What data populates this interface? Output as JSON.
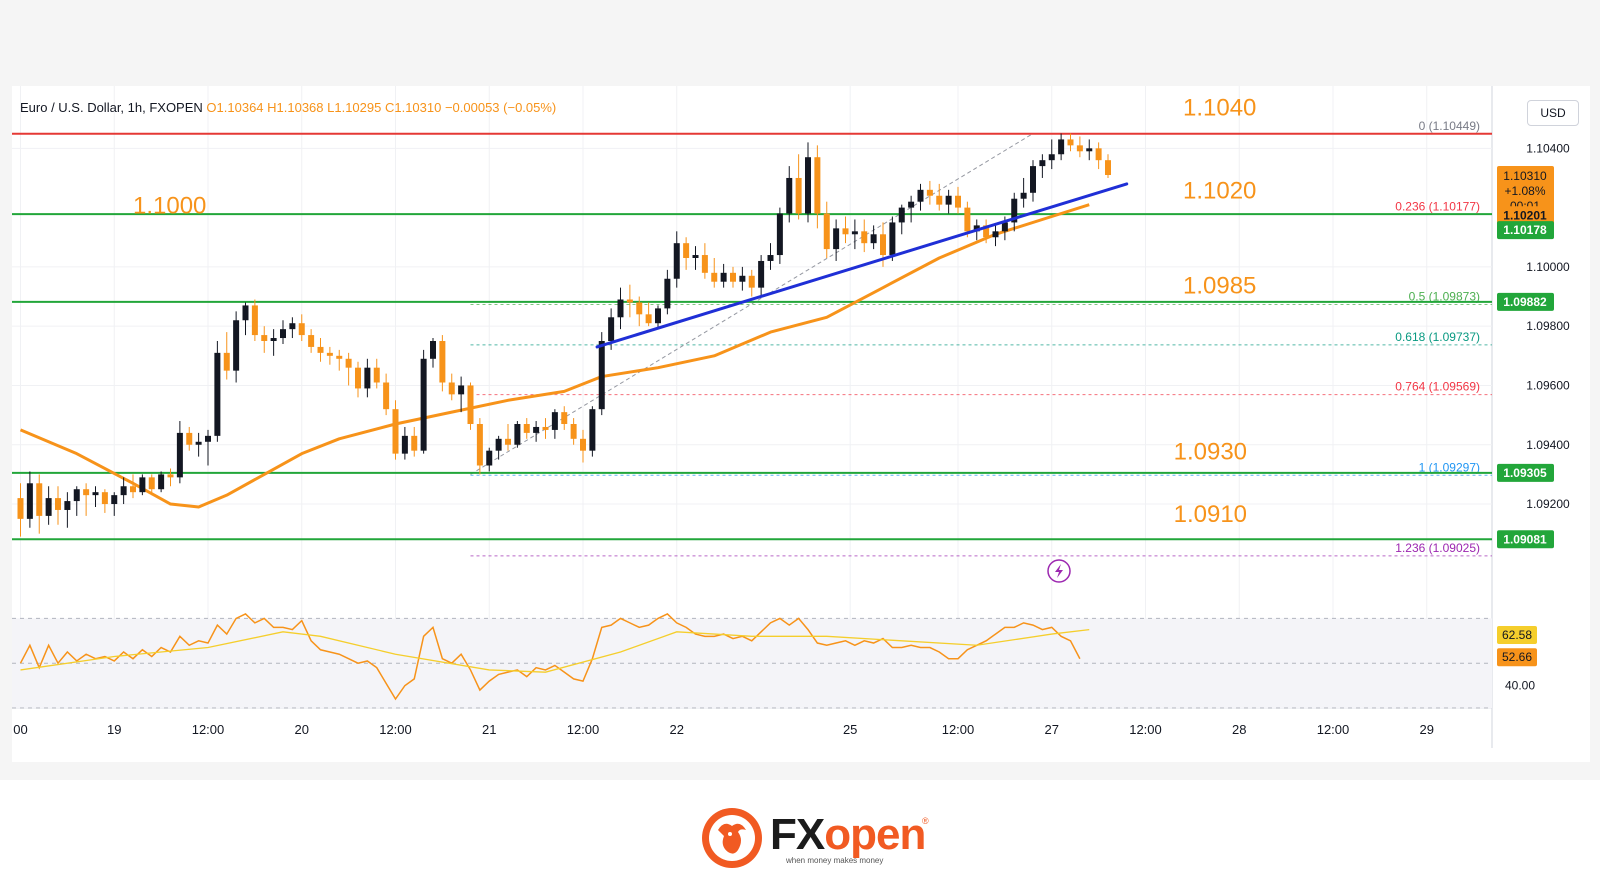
{
  "legend": {
    "symbol": "Euro / U.S. Dollar, 1h, FXOPEN",
    "ohlc": "O1.10364  H1.10368  L1.10295  C1.10310  −0.00053 (−0.05%)"
  },
  "currency_badge": "USD",
  "price_axis": {
    "ticks": [
      {
        "value": 1.104,
        "label": "1.10400"
      },
      {
        "value": 1.1,
        "label": "1.10000"
      },
      {
        "value": 1.098,
        "label": "1.09800"
      },
      {
        "value": 1.096,
        "label": "1.09600"
      },
      {
        "value": 1.094,
        "label": "1.09400"
      },
      {
        "value": 1.092,
        "label": "1.09200"
      }
    ],
    "tags": [
      {
        "value": 1.1031,
        "label": "1.10310",
        "color": "#f7931a"
      },
      {
        "value": 1.10201,
        "label": "1.10201",
        "color": "#f7931a"
      },
      {
        "value": 1.10178,
        "label": "1.10178",
        "color": "#22a63a"
      },
      {
        "value": 1.09882,
        "label": "1.09882",
        "color": "#22a63a"
      },
      {
        "value": 1.09305,
        "label": "1.09305",
        "color": "#22a63a"
      },
      {
        "value": 1.09081,
        "label": "1.09081",
        "color": "#22a63a"
      }
    ],
    "current_change": "+1.08%",
    "countdown": "00:01"
  },
  "time_axis": {
    "labels": [
      {
        "bar": 0,
        "label": "00"
      },
      {
        "bar": 10,
        "label": "19"
      },
      {
        "bar": 20,
        "label": "12:00"
      },
      {
        "bar": 30,
        "label": "20"
      },
      {
        "bar": 40,
        "label": "12:00"
      },
      {
        "bar": 50,
        "label": "21"
      },
      {
        "bar": 60,
        "label": "12:00"
      },
      {
        "bar": 70,
        "label": "22"
      },
      {
        "bar": 88.5,
        "label": "25"
      },
      {
        "bar": 100,
        "label": "12:00"
      },
      {
        "bar": 110,
        "label": "27"
      },
      {
        "bar": 120,
        "label": "12:00"
      },
      {
        "bar": 130,
        "label": "28"
      },
      {
        "bar": 140,
        "label": "12:00"
      },
      {
        "bar": 150,
        "label": "29"
      }
    ]
  },
  "chart_data": {
    "type": "candlestick",
    "instrument": "Euro / U.S. Dollar",
    "timeframe": "1h",
    "ylim": [
      1.0891,
      1.1059
    ],
    "candles": [
      [
        1.0922,
        1.0927,
        1.0909,
        1.0915
      ],
      [
        1.0915,
        1.0931,
        1.0912,
        1.0927
      ],
      [
        1.0927,
        1.093,
        1.091,
        1.0916
      ],
      [
        1.0916,
        1.0926,
        1.0913,
        1.0922
      ],
      [
        1.0922,
        1.0926,
        1.0913,
        1.0918
      ],
      [
        1.0918,
        1.0924,
        1.0912,
        1.0921
      ],
      [
        1.0921,
        1.0926,
        1.0916,
        1.0925
      ],
      [
        1.0925,
        1.0927,
        1.0916,
        1.0923
      ],
      [
        1.0923,
        1.0926,
        1.0919,
        1.0924
      ],
      [
        1.0924,
        1.0925,
        1.0917,
        1.092
      ],
      [
        1.092,
        1.0924,
        1.0916,
        1.0923
      ],
      [
        1.0923,
        1.0929,
        1.092,
        1.0926
      ],
      [
        1.0926,
        1.093,
        1.0922,
        1.0924
      ],
      [
        1.0924,
        1.093,
        1.0923,
        1.0929
      ],
      [
        1.0929,
        1.093,
        1.0923,
        1.0925
      ],
      [
        1.0925,
        1.0931,
        1.0924,
        1.093
      ],
      [
        1.093,
        1.0932,
        1.0926,
        1.0929
      ],
      [
        1.0929,
        1.0948,
        1.0927,
        1.0944
      ],
      [
        1.0944,
        1.0946,
        1.0938,
        1.094
      ],
      [
        1.094,
        1.0944,
        1.0936,
        1.0941
      ],
      [
        1.0941,
        1.0945,
        1.0933,
        1.0943
      ],
      [
        1.0943,
        1.0975,
        1.0941,
        1.0971
      ],
      [
        1.0971,
        1.0978,
        1.0962,
        1.0965
      ],
      [
        1.0965,
        1.0985,
        1.0961,
        1.0982
      ],
      [
        1.0982,
        1.0988,
        1.0977,
        1.0987
      ],
      [
        1.0987,
        1.0989,
        1.0975,
        1.0977
      ],
      [
        1.0977,
        1.098,
        1.0971,
        1.0975
      ],
      [
        1.0975,
        1.0979,
        1.097,
        1.0976
      ],
      [
        1.0976,
        1.0982,
        1.0974,
        1.0979
      ],
      [
        1.0979,
        1.0983,
        1.0976,
        1.0981
      ],
      [
        1.0981,
        1.0984,
        1.0975,
        1.0977
      ],
      [
        1.0977,
        1.0979,
        1.0971,
        1.0973
      ],
      [
        1.0973,
        1.0976,
        1.0968,
        1.0971
      ],
      [
        1.0971,
        1.0973,
        1.0967,
        1.097
      ],
      [
        1.097,
        1.0972,
        1.0965,
        1.0969
      ],
      [
        1.0969,
        1.0971,
        1.096,
        1.0966
      ],
      [
        1.0966,
        1.0968,
        1.0956,
        1.0959
      ],
      [
        1.0959,
        1.0969,
        1.0956,
        1.0966
      ],
      [
        1.0966,
        1.0969,
        1.0959,
        1.0961
      ],
      [
        1.0961,
        1.0964,
        1.095,
        1.0952
      ],
      [
        1.0952,
        1.0955,
        1.0935,
        1.0937
      ],
      [
        1.0937,
        1.0946,
        1.0935,
        1.0943
      ],
      [
        1.0943,
        1.0946,
        1.0936,
        1.0938
      ],
      [
        1.0938,
        1.0972,
        1.0937,
        1.0969
      ],
      [
        1.0969,
        1.0976,
        1.0966,
        1.0975
      ],
      [
        1.0975,
        1.0977,
        1.0958,
        1.0961
      ],
      [
        1.0961,
        1.0964,
        1.0955,
        1.0957
      ],
      [
        1.0957,
        1.0963,
        1.0951,
        1.096
      ],
      [
        1.096,
        1.0961,
        1.0945,
        1.0947
      ],
      [
        1.0947,
        1.0949,
        1.093,
        1.0933
      ],
      [
        1.0933,
        1.0939,
        1.0931,
        1.0938
      ],
      [
        1.0938,
        1.0943,
        1.0935,
        1.0942
      ],
      [
        1.0942,
        1.0947,
        1.0938,
        1.094
      ],
      [
        1.094,
        1.0948,
        1.0939,
        1.0947
      ],
      [
        1.0947,
        1.0949,
        1.0942,
        1.0944
      ],
      [
        1.0944,
        1.0948,
        1.0941,
        1.0946
      ],
      [
        1.0946,
        1.0949,
        1.0942,
        1.0945
      ],
      [
        1.0945,
        1.0952,
        1.0942,
        1.0951
      ],
      [
        1.0951,
        1.0953,
        1.0945,
        1.0947
      ],
      [
        1.0947,
        1.0949,
        1.094,
        1.0942
      ],
      [
        1.0942,
        1.0945,
        1.0934,
        1.0938
      ],
      [
        1.0938,
        1.0953,
        1.0936,
        1.0952
      ],
      [
        1.0952,
        1.0978,
        1.095,
        1.0975
      ],
      [
        1.0975,
        1.0986,
        1.0972,
        1.0983
      ],
      [
        1.0983,
        1.0993,
        1.0979,
        1.0989
      ],
      [
        1.0989,
        1.0994,
        1.0983,
        1.0988
      ],
      [
        1.0988,
        1.099,
        1.098,
        1.0984
      ],
      [
        1.0984,
        1.0988,
        1.098,
        1.0981
      ],
      [
        1.0981,
        1.0987,
        1.0979,
        1.0986
      ],
      [
        1.0986,
        1.0999,
        1.0984,
        1.0996
      ],
      [
        1.0996,
        1.1012,
        1.0993,
        1.1008
      ],
      [
        1.1008,
        1.101,
        1.0999,
        1.1003
      ],
      [
        1.1003,
        1.1007,
        1.0999,
        1.1004
      ],
      [
        1.1004,
        1.1008,
        1.0996,
        1.0998
      ],
      [
        1.0998,
        1.1003,
        1.0993,
        1.0995
      ],
      [
        1.0995,
        1.1001,
        1.0993,
        1.0998
      ],
      [
        1.0998,
        1.1,
        1.0993,
        1.0995
      ],
      [
        1.0995,
        1.1,
        1.0992,
        1.0997
      ],
      [
        1.0997,
        1.0999,
        1.099,
        1.0993
      ],
      [
        1.0993,
        1.1004,
        1.099,
        1.1002
      ],
      [
        1.1002,
        1.1008,
        1.0999,
        1.1004
      ],
      [
        1.1004,
        1.102,
        1.1001,
        1.1018
      ],
      [
        1.1018,
        1.1034,
        1.1015,
        1.103
      ],
      [
        1.103,
        1.1038,
        1.1016,
        1.1018
      ],
      [
        1.1018,
        1.1042,
        1.1015,
        1.1037
      ],
      [
        1.1037,
        1.1041,
        1.1013,
        1.1018
      ],
      [
        1.1018,
        1.1022,
        1.1003,
        1.1006
      ],
      [
        1.1006,
        1.1016,
        1.1002,
        1.1013
      ],
      [
        1.1013,
        1.1017,
        1.1008,
        1.1011
      ],
      [
        1.1011,
        1.1016,
        1.1006,
        1.1012
      ],
      [
        1.1012,
        1.1016,
        1.1005,
        1.1008
      ],
      [
        1.1008,
        1.1014,
        1.1006,
        1.1011
      ],
      [
        1.1011,
        1.1015,
        1.1,
        1.1004
      ],
      [
        1.1004,
        1.1017,
        1.1002,
        1.1015
      ],
      [
        1.1015,
        1.1021,
        1.1011,
        1.102
      ],
      [
        1.102,
        1.1024,
        1.1015,
        1.1022
      ],
      [
        1.1022,
        1.1028,
        1.1019,
        1.1026
      ],
      [
        1.1026,
        1.1029,
        1.1021,
        1.1024
      ],
      [
        1.1024,
        1.1028,
        1.1019,
        1.1021
      ],
      [
        1.1021,
        1.1026,
        1.1018,
        1.1024
      ],
      [
        1.1024,
        1.1027,
        1.1018,
        1.102
      ],
      [
        1.102,
        1.1022,
        1.101,
        1.1012
      ],
      [
        1.1012,
        1.1016,
        1.1009,
        1.1014
      ],
      [
        1.1014,
        1.1016,
        1.1008,
        1.101
      ],
      [
        1.101,
        1.1014,
        1.1007,
        1.1012
      ],
      [
        1.1012,
        1.1017,
        1.1009,
        1.1015
      ],
      [
        1.1015,
        1.1025,
        1.1012,
        1.1023
      ],
      [
        1.1023,
        1.103,
        1.102,
        1.1025
      ],
      [
        1.1025,
        1.1036,
        1.1022,
        1.1034
      ],
      [
        1.1034,
        1.1038,
        1.103,
        1.1036
      ],
      [
        1.1036,
        1.1043,
        1.1033,
        1.1038
      ],
      [
        1.1038,
        1.1045,
        1.1036,
        1.1043
      ],
      [
        1.1043,
        1.1045,
        1.1039,
        1.1041
      ],
      [
        1.1041,
        1.1044,
        1.1037,
        1.1039
      ],
      [
        1.1039,
        1.1043,
        1.1036,
        1.104
      ],
      [
        1.104,
        1.1042,
        1.1033,
        1.1036
      ],
      [
        1.1036,
        1.1038,
        1.103,
        1.1031
      ]
    ],
    "moving_average": [
      [
        0,
        1.0945
      ],
      [
        6,
        1.0937
      ],
      [
        12,
        1.0927
      ],
      [
        16,
        1.092
      ],
      [
        19,
        1.0919
      ],
      [
        22,
        1.0923
      ],
      [
        26,
        1.093
      ],
      [
        30,
        1.0937
      ],
      [
        34,
        1.0942
      ],
      [
        40,
        1.0947
      ],
      [
        46,
        1.0951
      ],
      [
        52,
        1.0955
      ],
      [
        58,
        1.0958
      ],
      [
        62,
        1.0963
      ],
      [
        68,
        1.0966
      ],
      [
        74,
        1.097
      ],
      [
        80,
        1.0978
      ],
      [
        86,
        1.0983
      ],
      [
        92,
        1.0993
      ],
      [
        98,
        1.1003
      ],
      [
        104,
        1.1011
      ],
      [
        110,
        1.1017
      ],
      [
        114,
        1.1021
      ]
    ],
    "trendline": [
      [
        61.5,
        1.0973
      ],
      [
        118,
        1.1028
      ]
    ],
    "fibonacci": {
      "from_bar": 48,
      "levels": [
        {
          "ratio": "0",
          "price": 1.10449,
          "label": "0 (1.10449)",
          "color": "#787b86"
        },
        {
          "ratio": "0.236",
          "price": 1.10177,
          "label": "0.236 (1.10177)",
          "color": "#f23645"
        },
        {
          "ratio": "0.5",
          "price": 1.09873,
          "label": "0.5 (1.09873)",
          "color": "#4caf50"
        },
        {
          "ratio": "0.618",
          "price": 1.09737,
          "label": "0.618 (1.09737)",
          "color": "#089981"
        },
        {
          "ratio": "0.764",
          "price": 1.09569,
          "label": "0.764 (1.09569)",
          "color": "#f23645"
        },
        {
          "ratio": "1",
          "price": 1.09297,
          "label": "1 (1.09297)",
          "color": "#2196f3"
        },
        {
          "ratio": "1.236",
          "price": 1.09025,
          "label": "1.236 (1.09025)",
          "color": "#9c27b0"
        }
      ]
    },
    "fib_diagonal": [
      [
        48,
        1.093
      ],
      [
        108,
        1.1045
      ]
    ],
    "horizontal_levels": [
      {
        "price": 1.10449,
        "color": "#e53935"
      },
      {
        "price": 1.10178,
        "color": "#22a63a"
      },
      {
        "price": 1.09882,
        "color": "#22a63a"
      },
      {
        "price": 1.09305,
        "color": "#22a63a"
      },
      {
        "price": 1.09081,
        "color": "#22a63a"
      }
    ],
    "annotations": [
      {
        "text": "1.1040",
        "bar": 124,
        "price": 1.1051
      },
      {
        "text": "1.1000",
        "bar": 12,
        "price": 1.1018
      },
      {
        "text": "1.1020",
        "bar": 124,
        "price": 1.1023
      },
      {
        "text": "1.0985",
        "bar": 124,
        "price": 1.0991
      },
      {
        "text": "1.0930",
        "bar": 123,
        "price": 1.0935
      },
      {
        "text": "1.0910",
        "bar": 123,
        "price": 1.0914
      }
    ],
    "rsi": {
      "ylim": [
        30,
        80
      ],
      "axis_labels": [
        {
          "value": 40,
          "label": "40.00"
        }
      ],
      "tags": [
        {
          "value": 62.58,
          "label": "62.58",
          "color": "#f5ce2c"
        },
        {
          "value": 52.66,
          "label": "52.66",
          "color": "#f7931a"
        }
      ],
      "rsi_values": [
        50,
        58,
        48,
        58,
        50,
        55,
        51,
        54,
        52,
        53,
        51,
        55,
        52,
        56,
        53,
        57,
        55,
        62,
        58,
        60,
        59,
        67,
        63,
        70,
        72,
        68,
        70,
        66,
        66,
        65,
        69,
        60,
        56,
        55,
        54,
        52,
        50,
        51,
        48,
        41,
        34,
        40,
        43,
        62,
        66,
        52,
        50,
        54,
        47,
        38,
        42,
        45,
        46,
        47,
        44,
        48,
        47,
        49,
        46,
        43,
        42,
        52,
        66,
        67,
        70,
        68,
        66,
        67,
        70,
        72,
        68,
        66,
        63,
        62,
        62,
        63,
        61,
        62,
        60,
        64,
        68,
        70,
        67,
        70,
        65,
        59,
        58,
        59,
        60,
        58,
        60,
        59,
        61,
        57,
        57,
        58,
        57,
        57,
        55,
        52,
        52,
        56,
        58,
        60,
        63,
        66,
        66,
        68,
        67,
        65,
        66,
        62,
        60,
        52
      ],
      "signal_values": [
        [
          0,
          47
        ],
        [
          10,
          53
        ],
        [
          20,
          57
        ],
        [
          28,
          64
        ],
        [
          32,
          62
        ],
        [
          40,
          54
        ],
        [
          50,
          47
        ],
        [
          56,
          46
        ],
        [
          64,
          55
        ],
        [
          70,
          64
        ],
        [
          78,
          62
        ],
        [
          86,
          62
        ],
        [
          94,
          60
        ],
        [
          102,
          58
        ],
        [
          110,
          63
        ],
        [
          114,
          65
        ]
      ]
    }
  },
  "logo": {
    "brand_prefix": "FX",
    "brand_suffix": "open",
    "tagline": "when money makes money",
    "registered": "®"
  }
}
